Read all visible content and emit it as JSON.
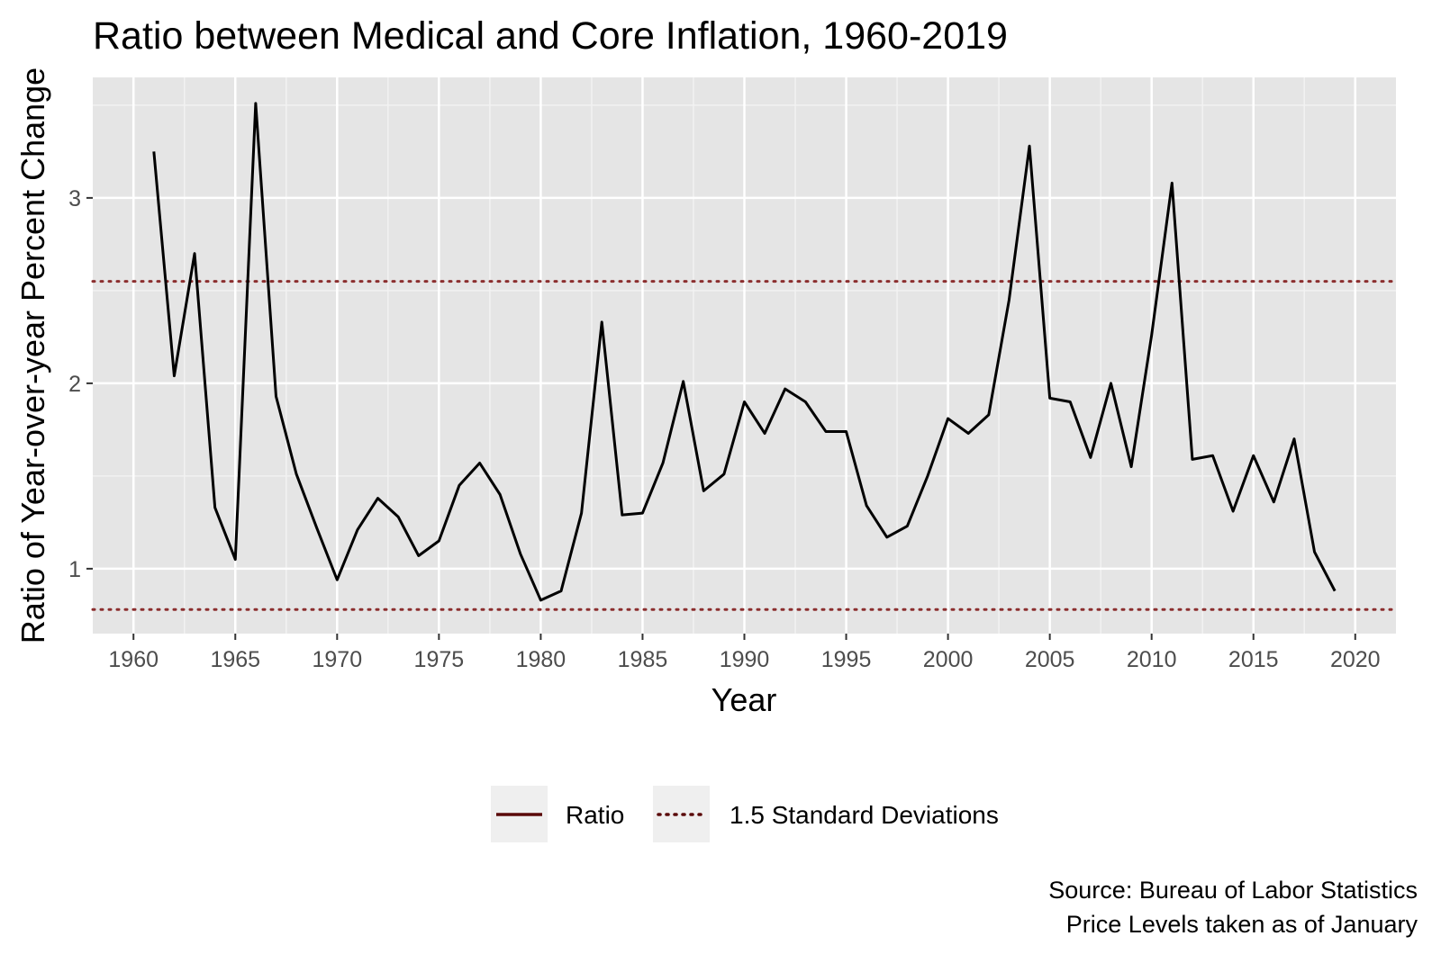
{
  "chart_data": {
    "type": "line",
    "title": "Ratio between Medical and Core Inflation, 1960-2019",
    "xlabel": "Year",
    "ylabel": "Ratio of Year-over-year Percent Change",
    "xlim": [
      1958,
      2022
    ],
    "ylim": [
      0.65,
      3.65
    ],
    "x_ticks": [
      1960,
      1965,
      1970,
      1975,
      1980,
      1985,
      1990,
      1995,
      2000,
      2005,
      2010,
      2015,
      2020
    ],
    "x_tick_labels": [
      "1960",
      "1965",
      "1970",
      "1975",
      "1980",
      "1985",
      "1990",
      "1995",
      "2000",
      "2005",
      "2010",
      "2015",
      "2020"
    ],
    "y_ticks": [
      1,
      2,
      3
    ],
    "y_tick_labels": [
      "1",
      "2",
      "3"
    ],
    "grid": true,
    "legend_position": "bottom",
    "series": [
      {
        "name": "Ratio",
        "style": "solid",
        "color": "#000000",
        "x": [
          1961,
          1962,
          1963,
          1964,
          1965,
          1966,
          1967,
          1968,
          1969,
          1970,
          1971,
          1972,
          1973,
          1974,
          1975,
          1976,
          1977,
          1978,
          1979,
          1980,
          1981,
          1982,
          1983,
          1984,
          1985,
          1986,
          1987,
          1988,
          1989,
          1990,
          1991,
          1992,
          1993,
          1994,
          1995,
          1996,
          1997,
          1998,
          1999,
          2000,
          2001,
          2002,
          2003,
          2004,
          2005,
          2006,
          2007,
          2008,
          2009,
          2010,
          2011,
          2012,
          2013,
          2014,
          2015,
          2016,
          2017,
          2018,
          2019
        ],
        "y": [
          3.25,
          2.04,
          2.7,
          1.33,
          1.05,
          3.51,
          1.93,
          1.51,
          1.22,
          0.94,
          1.21,
          1.38,
          1.28,
          1.07,
          1.15,
          1.45,
          1.57,
          1.4,
          1.08,
          0.83,
          0.88,
          1.3,
          2.33,
          1.29,
          1.3,
          1.57,
          2.01,
          1.42,
          1.51,
          1.9,
          1.73,
          1.97,
          1.9,
          1.74,
          1.74,
          1.34,
          1.17,
          1.23,
          1.5,
          1.81,
          1.73,
          1.83,
          2.45,
          3.28,
          1.92,
          1.9,
          1.6,
          2.0,
          1.55,
          2.26,
          3.08,
          1.59,
          1.61,
          1.31,
          1.61,
          1.36,
          1.7,
          1.09,
          0.88
        ]
      }
    ],
    "reference_lines": [
      {
        "name": "1.5 Standard Deviations",
        "style": "dotted",
        "color": "#8b2e2e",
        "values": [
          2.55,
          0.78
        ]
      }
    ],
    "legend": [
      {
        "label": "Ratio",
        "style": "solid",
        "color": "#5a0a0a"
      },
      {
        "label": "1.5 Standard Deviations",
        "style": "dotted",
        "color": "#5a0a0a"
      }
    ],
    "caption": [
      "Source: Bureau of Labor Statistics",
      "Price Levels taken as of January"
    ]
  },
  "colors": {
    "panel_background": "#e5e5e5",
    "grid_major": "#ffffff",
    "grid_minor": "#f2f2f2",
    "legend_key_background": "#efefef"
  }
}
